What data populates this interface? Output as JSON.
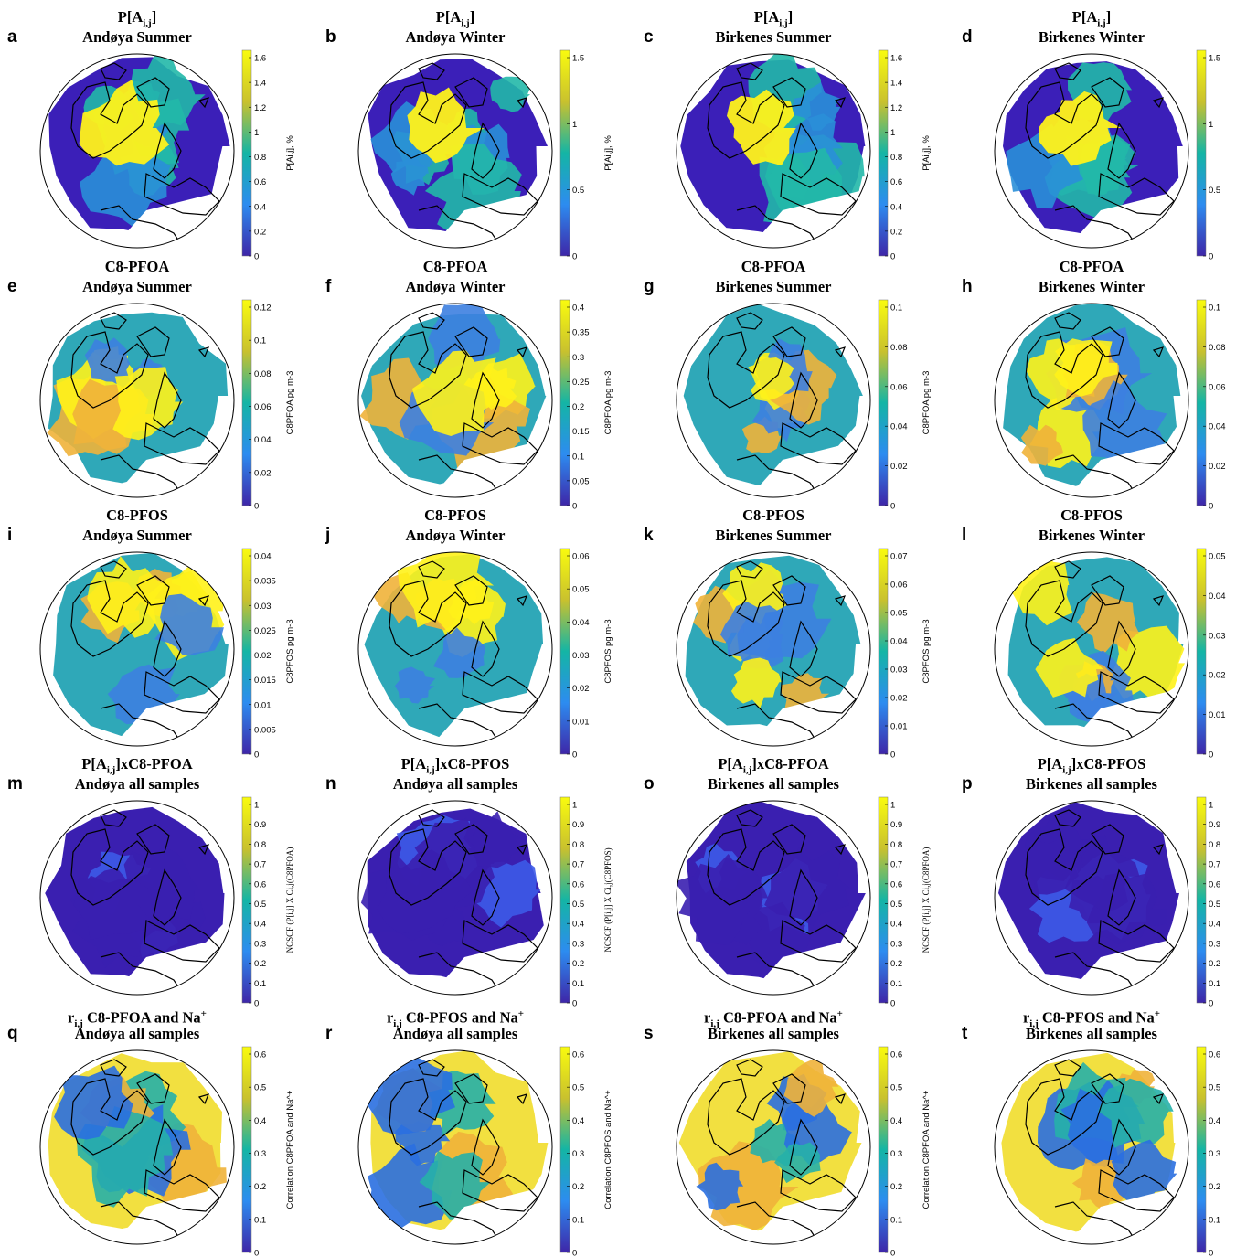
{
  "colors": {
    "low": "#3b1fb8",
    "mid": "#1faaa0",
    "high": "#fff21a",
    "coast": "#000000"
  },
  "panels": [
    {
      "letter": "a",
      "t1": [
        "P[A",
        "i,j",
        "]"
      ],
      "t2": "Andøya Summer",
      "ticks": [
        "0",
        "0.2",
        "0.4",
        "0.6",
        "0.8",
        "1",
        "1.2",
        "1.4",
        "1.6"
      ],
      "cblabel": "P[Ai,j], %",
      "fill": "pa",
      "level": 0.7
    },
    {
      "letter": "b",
      "t1": [
        "P[A",
        "i,j",
        "]"
      ],
      "t2": "Andøya Winter",
      "ticks": [
        "0",
        "0.5",
        "1",
        "1.5"
      ],
      "cblabel": "P[Ai,j], %",
      "fill": "pa",
      "level": 0.6
    },
    {
      "letter": "c",
      "t1": [
        "P[A",
        "i,j",
        "]"
      ],
      "t2": "Birkenes Summer",
      "ticks": [
        "0",
        "0.2",
        "0.4",
        "0.6",
        "0.8",
        "1",
        "1.2",
        "1.4",
        "1.6"
      ],
      "cblabel": "P[Ai,j], %",
      "fill": "pa",
      "level": 0.6
    },
    {
      "letter": "d",
      "t1": [
        "P[A",
        "i,j",
        "]"
      ],
      "t2": "Birkenes Winter",
      "ticks": [
        "0",
        "0.5",
        "1",
        "1.5"
      ],
      "cblabel": "P[Ai,j], %",
      "fill": "pa",
      "level": 0.6
    },
    {
      "letter": "e",
      "t1": [
        "C8-PFOA"
      ],
      "t2": "Andøya Summer",
      "ticks": [
        "0",
        "0.02",
        "0.04",
        "0.06",
        "0.08",
        "0.1",
        "0.12"
      ],
      "cblabel": "C8PFOA pg m-3",
      "fill": "conc",
      "level": 0.7
    },
    {
      "letter": "f",
      "t1": [
        "C8-PFOA"
      ],
      "t2": "Andøya Winter",
      "ticks": [
        "0",
        "0.05",
        "0.1",
        "0.15",
        "0.2",
        "0.25",
        "0.3",
        "0.35",
        "0.4"
      ],
      "cblabel": "C8PFOA pg m-3",
      "fill": "conc",
      "level": 0.5
    },
    {
      "letter": "g",
      "t1": [
        "C8-PFOA"
      ],
      "t2": "Birkenes Summer",
      "ticks": [
        "0",
        "0.02",
        "0.04",
        "0.06",
        "0.08",
        "0.1"
      ],
      "cblabel": "C8PFOA pg m-3",
      "fill": "conc",
      "level": 0.75
    },
    {
      "letter": "h",
      "t1": [
        "C8-PFOA"
      ],
      "t2": "Birkenes Winter",
      "ticks": [
        "0",
        "0.02",
        "0.04",
        "0.06",
        "0.08",
        "0.1"
      ],
      "cblabel": "C8PFOA pg m-3",
      "fill": "conc",
      "level": 0.45
    },
    {
      "letter": "i",
      "t1": [
        "C8-PFOS"
      ],
      "t2": "Andøya Summer",
      "ticks": [
        "0",
        "0.005",
        "0.01",
        "0.015",
        "0.02",
        "0.025",
        "0.03",
        "0.035",
        "0.04"
      ],
      "cblabel": "C8PFOS pg m-3",
      "fill": "conc",
      "level": 0.6
    },
    {
      "letter": "j",
      "t1": [
        "C8-PFOS"
      ],
      "t2": "Andøya Winter",
      "ticks": [
        "0",
        "0.01",
        "0.02",
        "0.03",
        "0.04",
        "0.05",
        "0.06"
      ],
      "cblabel": "C8PFOS pg m-3",
      "fill": "conc",
      "level": 0.6
    },
    {
      "letter": "k",
      "t1": [
        "C8-PFOS"
      ],
      "t2": "Birkenes Summer",
      "ticks": [
        "0",
        "0.01",
        "0.02",
        "0.03",
        "0.04",
        "0.05",
        "0.06",
        "0.07"
      ],
      "cblabel": "C8PFOS pg m-3",
      "fill": "conc",
      "level": 0.6
    },
    {
      "letter": "l",
      "t1": [
        "C8-PFOS"
      ],
      "t2": "Birkenes Winter",
      "ticks": [
        "0",
        "0.01",
        "0.02",
        "0.03",
        "0.04",
        "0.05"
      ],
      "cblabel": "C8PFOS pg m-3",
      "fill": "conc",
      "level": 0.45
    },
    {
      "letter": "m",
      "t1": [
        "P[A",
        "i,j",
        "]xC8-PFOA"
      ],
      "t2": "Andøya all samples",
      "ticks": [
        "0",
        "0.1",
        "0.2",
        "0.3",
        "0.4",
        "0.5",
        "0.6",
        "0.7",
        "0.8",
        "0.9",
        "1"
      ],
      "cblabel": "NCSCF (P[i,j] X Ci,j(C8PFOA)",
      "fill": "ncscf",
      "level": 0.1
    },
    {
      "letter": "n",
      "t1": [
        "P[A",
        "i,j",
        "]xC8-PFOS"
      ],
      "t2": "Andøya all samples",
      "ticks": [
        "0",
        "0.1",
        "0.2",
        "0.3",
        "0.4",
        "0.5",
        "0.6",
        "0.7",
        "0.8",
        "0.9",
        "1"
      ],
      "cblabel": "NCSCF (P[i,j] X Ci,j(C8PFOS)",
      "fill": "ncscf",
      "level": 0.1
    },
    {
      "letter": "o",
      "t1": [
        "P[A",
        "i,j",
        "]xC8-PFOA"
      ],
      "t2": "Birkenes all samples",
      "ticks": [
        "0",
        "0.1",
        "0.2",
        "0.3",
        "0.4",
        "0.5",
        "0.6",
        "0.7",
        "0.8",
        "0.9",
        "1"
      ],
      "cblabel": "NCSCF (P[i,j] X Ci,j(C8PFOA)",
      "fill": "ncscf",
      "level": 0.1
    },
    {
      "letter": "p",
      "t1": [
        "P[A",
        "i,j",
        "]xC8-PFOS"
      ],
      "t2": "Birkenes all samples",
      "ticks": [
        "0",
        "0.1",
        "0.2",
        "0.3",
        "0.4",
        "0.5",
        "0.6",
        "0.7",
        "0.8",
        "0.9",
        "1"
      ],
      "cblabel": "NCSCF (P[i,j] X Ci,j(C8PFOS)",
      "fill": "ncscf",
      "level": 0.1
    },
    {
      "letter": "q",
      "t1": [
        "r",
        "i,j",
        " C8-PFOA and Na",
        "+"
      ],
      "t2": "Andøya all samples",
      "ticks": [
        "0",
        "0.1",
        "0.2",
        "0.3",
        "0.4",
        "0.5",
        "0.6"
      ],
      "cblabel": "Correlation C8PFOA and Na^+",
      "fill": "corr",
      "level": 0.6
    },
    {
      "letter": "r",
      "t1": [
        "r",
        "i,j",
        " C8-PFOS and Na",
        "+"
      ],
      "t2": "Andøya all samples",
      "ticks": [
        "0",
        "0.1",
        "0.2",
        "0.3",
        "0.4",
        "0.5",
        "0.6"
      ],
      "cblabel": "Correlation C8PFOS and Na^+",
      "fill": "corr",
      "level": 0.8
    },
    {
      "letter": "s",
      "t1": [
        "r",
        "i,j",
        " C8-PFOA and Na",
        "+"
      ],
      "t2": "Birkenes all samples",
      "ticks": [
        "0",
        "0.1",
        "0.2",
        "0.3",
        "0.4",
        "0.5",
        "0.6"
      ],
      "cblabel": "Correlation C8PFOA and Na^+",
      "fill": "corr",
      "level": 0.65
    },
    {
      "letter": "t",
      "t1": [
        "r",
        "i,j",
        " C8-PFOS and Na",
        "+"
      ],
      "t2": "Birkenes all samples",
      "ticks": [
        "0",
        "0.1",
        "0.2",
        "0.3",
        "0.4",
        "0.5",
        "0.6"
      ],
      "cblabel": "Correlation C8PFOS and Na^+",
      "fill": "corr",
      "level": 0.65
    }
  ]
}
